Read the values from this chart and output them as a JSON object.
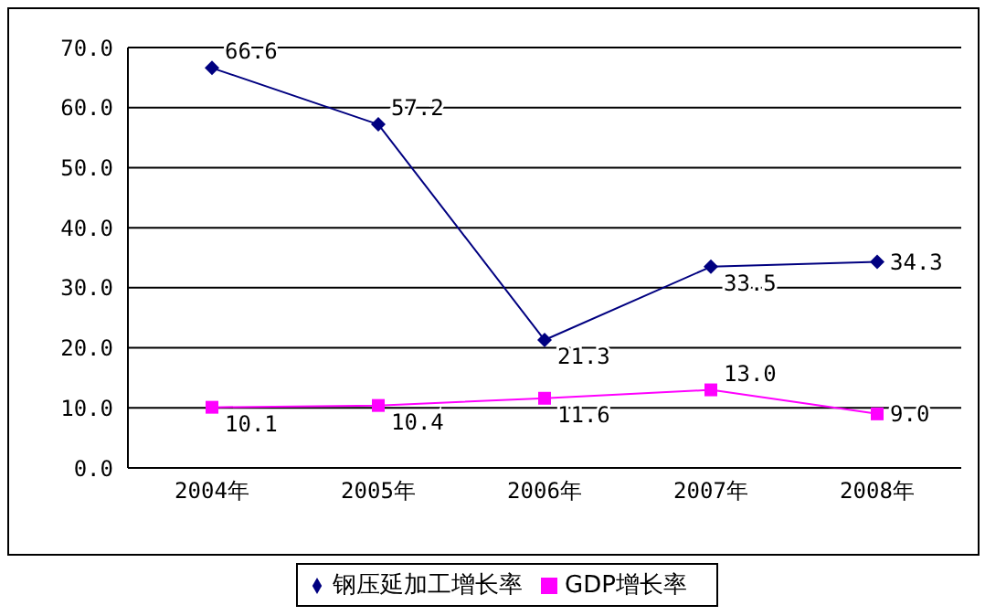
{
  "chart_data": {
    "type": "line",
    "categories": [
      "2004年",
      "2005年",
      "2006年",
      "2007年",
      "2008年"
    ],
    "series": [
      {
        "name": "钢压延加工增长率",
        "color": "#000080",
        "values": [
          66.6,
          57.2,
          21.3,
          33.5,
          34.3
        ],
        "marker": "diamond",
        "value_labels": [
          "66.6",
          "57.2",
          "21.3",
          "33.5",
          "34.3"
        ]
      },
      {
        "name": "GDP增长率",
        "color": "#ff00ff",
        "values": [
          10.1,
          10.4,
          11.6,
          13.0,
          9.0
        ],
        "marker": "square",
        "value_labels": [
          "10.1",
          "10.4",
          "11.6",
          "13.0",
          "9.0"
        ]
      }
    ],
    "ylim": [
      0,
      70
    ],
    "yticks": [
      {
        "value": 0,
        "label": "0.0"
      },
      {
        "value": 10,
        "label": "10.0"
      },
      {
        "value": 20,
        "label": "20.0"
      },
      {
        "value": 30,
        "label": "30.0"
      },
      {
        "value": 40,
        "label": "40.0"
      },
      {
        "value": 50,
        "label": "50.0"
      },
      {
        "value": 60,
        "label": "60.0"
      },
      {
        "value": 70,
        "label": "70.0"
      }
    ],
    "grid": "y",
    "legend": "bottom"
  }
}
